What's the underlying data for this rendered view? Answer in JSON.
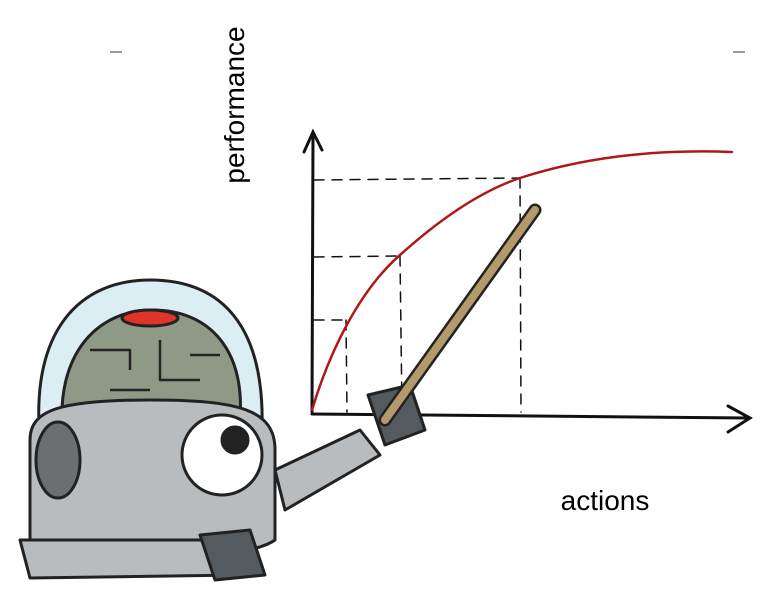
{
  "labels": {
    "y_axis": "performance",
    "x_axis": "actions"
  }
}
